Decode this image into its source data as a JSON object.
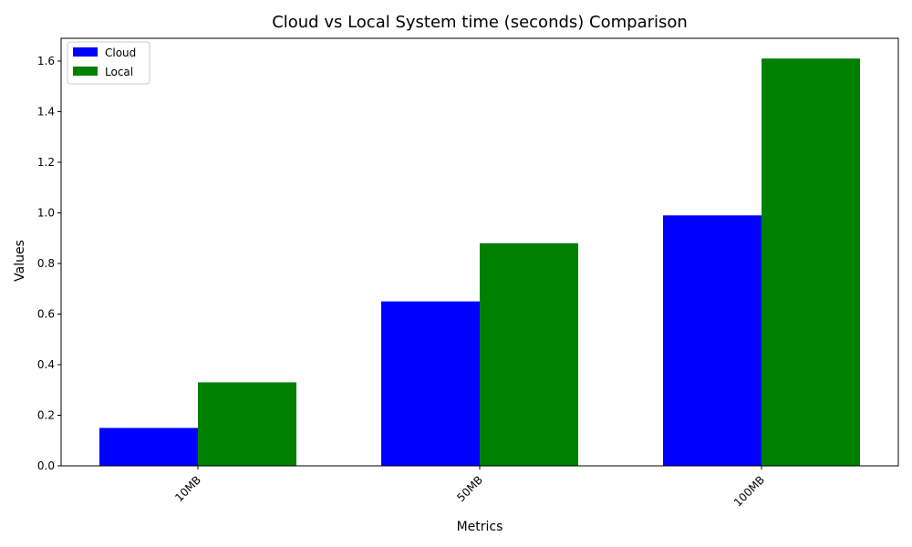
{
  "chart_data": {
    "type": "bar",
    "title": "Cloud vs Local System time (seconds) Comparison",
    "xlabel": "Metrics",
    "ylabel": "Values",
    "categories": [
      "10MB",
      "50MB",
      "100MB"
    ],
    "series": [
      {
        "name": "Cloud",
        "color": "#0000ff",
        "values": [
          0.15,
          0.65,
          0.99
        ]
      },
      {
        "name": "Local",
        "color": "#008000",
        "values": [
          0.33,
          0.88,
          1.61
        ]
      }
    ],
    "ylim": [
      0,
      1.69
    ],
    "yticks": [
      "0.0",
      "0.2",
      "0.4",
      "0.6",
      "0.8",
      "1.0",
      "1.2",
      "1.4",
      "1.6"
    ],
    "legend_position": "top-left",
    "grid": false
  }
}
